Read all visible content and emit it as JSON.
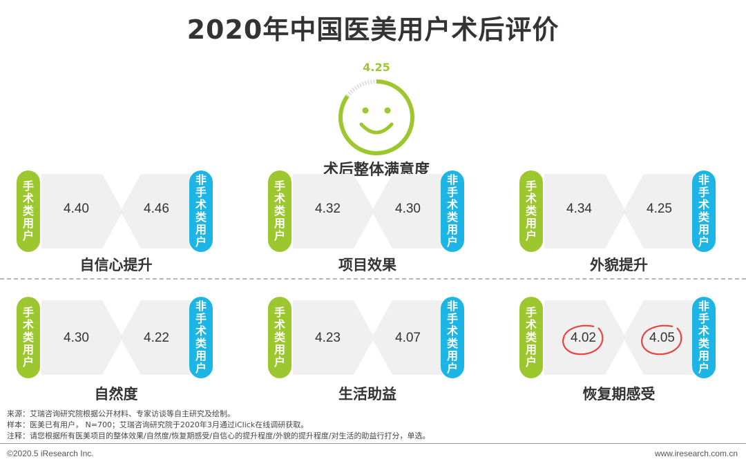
{
  "title": "2020年中国医美用户术后评价",
  "chart_data": {
    "type": "table",
    "overall": {
      "label": "术后整体满意度",
      "value": 4.25,
      "value_text": "4.25"
    },
    "series_names": [
      "手术类用户",
      "非手术类用户"
    ],
    "categories": [
      "自信心提升",
      "项目效果",
      "外貌提升",
      "自然度",
      "生活助益",
      "恢复期感受"
    ],
    "series": [
      {
        "name": "手术类用户",
        "values": [
          4.4,
          4.32,
          4.34,
          4.3,
          4.23,
          4.02
        ]
      },
      {
        "name": "非手术类用户",
        "values": [
          4.46,
          4.3,
          4.25,
          4.22,
          4.07,
          4.05
        ]
      }
    ],
    "panels": [
      {
        "label": "自信心提升",
        "surgical": "4.40",
        "nonsurgical": "4.46",
        "highlight": false
      },
      {
        "label": "项目效果",
        "surgical": "4.32",
        "nonsurgical": "4.30",
        "highlight": false
      },
      {
        "label": "外貌提升",
        "surgical": "4.34",
        "nonsurgical": "4.25",
        "highlight": false
      },
      {
        "label": "自然度",
        "surgical": "4.30",
        "nonsurgical": "4.22",
        "highlight": false
      },
      {
        "label": "生活助益",
        "surgical": "4.23",
        "nonsurgical": "4.07",
        "highlight": false
      },
      {
        "label": "恢复期感受",
        "surgical": "4.02",
        "nonsurgical": "4.05",
        "highlight": true
      }
    ],
    "tags": {
      "surgical": "手术类用户",
      "nonsurgical": "非手术类用户"
    },
    "colors": {
      "surgical": "#9dc72e",
      "nonsurgical": "#1cb5e6",
      "highlight": "#e8413c",
      "arrow": "#f0f0f0"
    }
  },
  "notes": [
    "来源：艾瑞咨询研究院根据公开材料、专家访谈等自主研究及绘制。",
    "样本：医美已有用户，  N=700；艾瑞咨询研究院于2020年3月通过iClick在线调研获取。",
    "注释：请您根据所有医美项目的整体效果/自然度/恢复期感受/自信心的提升程度/外貌的提升程度/对生活的助益行打分，单选。"
  ],
  "footer": {
    "copyright": "©2020.5 iResearch Inc.",
    "website": "www.iresearch.com.cn"
  }
}
